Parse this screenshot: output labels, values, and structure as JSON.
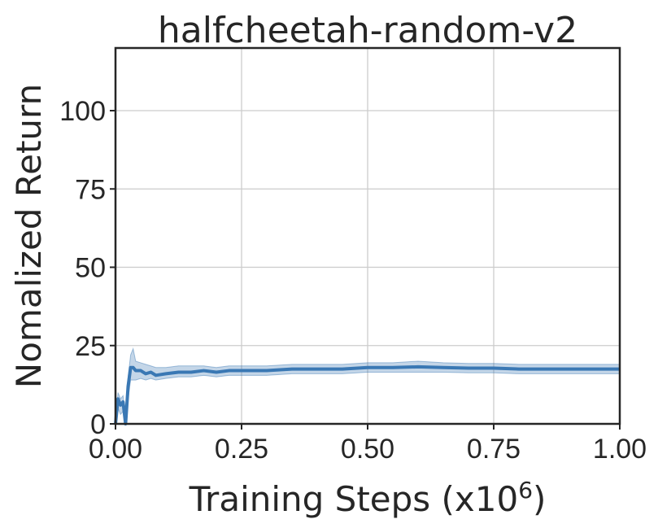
{
  "chart_data": {
    "type": "line",
    "title": "halfcheetah-random-v2",
    "xlabel": "Training Steps (x10",
    "xlabel_exponent": "6",
    "xlabel_suffix": ")",
    "ylabel": "Nomalized Return",
    "xlim": [
      0,
      1.0
    ],
    "ylim": [
      0,
      120
    ],
    "xticks": [
      0.0,
      0.25,
      0.5,
      0.75,
      1.0
    ],
    "xtick_labels": [
      "0.00",
      "0.25",
      "0.50",
      "0.75",
      "1.00"
    ],
    "yticks": [
      0,
      25,
      50,
      75,
      100
    ],
    "ytick_labels": [
      "0",
      "25",
      "50",
      "75",
      "100"
    ],
    "grid": true,
    "colors": {
      "line": "#3a78b4",
      "band": "#3a78b4"
    },
    "series": [
      {
        "x": [
          0.0,
          0.005,
          0.01,
          0.015,
          0.02,
          0.025,
          0.03,
          0.035,
          0.04,
          0.05,
          0.06,
          0.07,
          0.08,
          0.1,
          0.125,
          0.15,
          0.175,
          0.2,
          0.225,
          0.25,
          0.3,
          0.35,
          0.4,
          0.45,
          0.5,
          0.55,
          0.6,
          0.65,
          0.7,
          0.75,
          0.8,
          0.85,
          0.9,
          0.95,
          1.0
        ],
        "y": [
          0,
          8,
          6,
          7,
          0,
          12,
          18,
          18,
          17,
          17,
          16,
          16.5,
          15.5,
          16,
          16.5,
          16.5,
          17,
          16.5,
          17,
          17,
          17,
          17.5,
          17.5,
          17.5,
          18,
          18,
          18.2,
          18,
          17.8,
          17.8,
          17.5,
          17.5,
          17.5,
          17.5,
          17.5
        ],
        "lower": [
          0,
          5,
          3,
          4,
          0,
          8,
          14,
          14,
          14,
          14.5,
          14,
          14.5,
          14,
          14.5,
          15,
          15,
          15.5,
          15,
          15.5,
          15.5,
          15.5,
          16,
          16,
          16,
          16.5,
          16.5,
          16.5,
          16.5,
          16.3,
          16.3,
          16,
          16,
          16,
          16,
          16
        ],
        "upper": [
          0,
          10,
          8,
          9,
          2,
          15,
          22,
          24,
          20,
          19.5,
          19,
          18.5,
          18,
          18,
          18.5,
          18.5,
          18.5,
          18,
          18.5,
          18.5,
          18.5,
          19,
          19,
          19,
          19.5,
          19.5,
          20,
          19.5,
          19.3,
          19.3,
          19,
          19,
          19,
          19,
          19
        ]
      }
    ]
  }
}
